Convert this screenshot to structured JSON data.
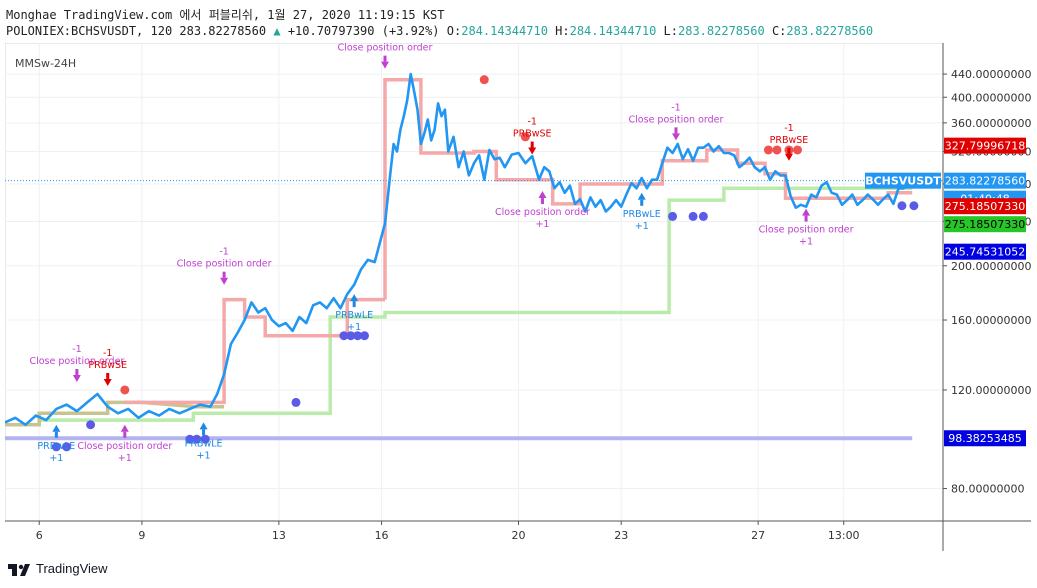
{
  "header": {
    "line1": "Monghae TradingView.com 에서 퍼블리쉬, 1월 27, 2020 11:19:15 KST",
    "symbol": "POLONIEX:BCHSVUSDT, 120",
    "price": "283.82278560",
    "change": "+10.70797390 (+3.92%)",
    "o_label": "O:",
    "o_value": "284.14344710",
    "h_label": "H:",
    "h_value": "284.14344710",
    "l_label": "L:",
    "l_value": "283.82278560",
    "c_label": "C:",
    "c_value": "283.82278560"
  },
  "indicator_label": "MMSw-24H",
  "footer": {
    "brand": "TradingView"
  },
  "colors": {
    "price_line": "#2196f3",
    "red_stop": "#f4a9a8",
    "green_stop": "#b9ecaa",
    "olive_stop": "#c9c38f",
    "lavender": "#b3b3f0",
    "dots_blue": "#5b5be8",
    "dots_red": "#ef5350",
    "magenta": "#c040d0",
    "red_signal": "#e00000",
    "blue_signal": "#1e88e5"
  },
  "chart_data": {
    "type": "line",
    "y_scale": "log",
    "ylim": [
      70,
      500
    ],
    "y_ticks": [
      "440.00000000",
      "400.00000000",
      "360.00000000",
      "320.00000000",
      "280.00000000",
      "240.00000000",
      "200.00000000",
      "160.00000000",
      "120.00000000",
      "80.00000000"
    ],
    "x_ticks": [
      "6",
      "9",
      "13",
      "16",
      "20",
      "23",
      "27",
      "13:00"
    ],
    "price_labels": [
      {
        "text": "327.79996718",
        "value": 327.79996718,
        "color": "#e00000",
        "text_color": "#ffffff"
      },
      {
        "text": "BCHSVUSDT",
        "value": 283.8227856,
        "color": "#2196f3",
        "text_color": "#ffffff",
        "side": "left"
      },
      {
        "text": "283.82278560",
        "value": 283.8227856,
        "color": "#2196f3",
        "text_color": "#ffffff"
      },
      {
        "text": "01:40:48",
        "value": null,
        "color": "#2196f3",
        "text_color": "#ffffff"
      },
      {
        "text": "275.18507330",
        "value": 275.1850733,
        "color": "#e00000",
        "text_color": "#ffffff"
      },
      {
        "text": "275.18507330",
        "value": 275.1850733,
        "color": "#26c626",
        "text_color": "#000000"
      },
      {
        "text": "245.74531052",
        "value": 245.74531052,
        "color": "#0000e0",
        "text_color": "#ffffff"
      },
      {
        "text": "98.38253485",
        "value": 98.38253485,
        "color": "#0000e0",
        "text_color": "#ffffff"
      }
    ],
    "series": [
      {
        "name": "",
        "values": [
          [
            5.0,
            105
          ],
          [
            5.3,
            107
          ],
          [
            5.6,
            104
          ],
          [
            5.9,
            108
          ],
          [
            6.2,
            106
          ],
          [
            6.5,
            111
          ],
          [
            6.8,
            113
          ],
          [
            7.1,
            110
          ],
          [
            7.4,
            114
          ],
          [
            7.7,
            118
          ],
          [
            8.0,
            112
          ],
          [
            8.3,
            109
          ],
          [
            8.6,
            111
          ],
          [
            8.9,
            107
          ],
          [
            9.2,
            110
          ],
          [
            9.5,
            108
          ],
          [
            9.8,
            111
          ],
          [
            10.1,
            109
          ],
          [
            10.4,
            111
          ],
          [
            10.7,
            113
          ],
          [
            11.0,
            112
          ],
          [
            11.2,
            118
          ],
          [
            11.4,
            128
          ],
          [
            11.6,
            145
          ],
          [
            11.8,
            152
          ],
          [
            12.0,
            160
          ],
          [
            12.2,
            172
          ],
          [
            12.4,
            165
          ],
          [
            12.6,
            168
          ],
          [
            12.8,
            160
          ],
          [
            13.0,
            156
          ],
          [
            13.2,
            158
          ],
          [
            13.4,
            153
          ],
          [
            13.6,
            162
          ],
          [
            13.8,
            158
          ],
          [
            14.0,
            170
          ],
          [
            14.2,
            172
          ],
          [
            14.4,
            168
          ],
          [
            14.6,
            175
          ],
          [
            14.8,
            168
          ],
          [
            15.0,
            178
          ],
          [
            15.2,
            185
          ],
          [
            15.4,
            197
          ],
          [
            15.6,
            205
          ],
          [
            15.8,
            203
          ],
          [
            15.95,
            220
          ],
          [
            16.1,
            238
          ],
          [
            16.25,
            290
          ],
          [
            16.35,
            330
          ],
          [
            16.45,
            320
          ],
          [
            16.55,
            350
          ],
          [
            16.65,
            370
          ],
          [
            16.75,
            395
          ],
          [
            16.85,
            440
          ],
          [
            16.95,
            410
          ],
          [
            17.05,
            380
          ],
          [
            17.15,
            330
          ],
          [
            17.25,
            345
          ],
          [
            17.35,
            365
          ],
          [
            17.45,
            335
          ],
          [
            17.55,
            350
          ],
          [
            17.65,
            390
          ],
          [
            17.75,
            370
          ],
          [
            17.85,
            380
          ],
          [
            17.95,
            320
          ],
          [
            18.1,
            340
          ],
          [
            18.25,
            300
          ],
          [
            18.4,
            320
          ],
          [
            18.55,
            290
          ],
          [
            18.7,
            305
          ],
          [
            18.85,
            315
          ],
          [
            19.0,
            285
          ],
          [
            19.15,
            322
          ],
          [
            19.3,
            310
          ],
          [
            19.45,
            312
          ],
          [
            19.6,
            300
          ],
          [
            19.8,
            316
          ],
          [
            20.0,
            318
          ],
          [
            20.2,
            305
          ],
          [
            20.4,
            314
          ],
          [
            20.6,
            285
          ],
          [
            20.75,
            300
          ],
          [
            20.9,
            295
          ],
          [
            21.05,
            275
          ],
          [
            21.2,
            282
          ],
          [
            21.35,
            270
          ],
          [
            21.5,
            278
          ],
          [
            21.65,
            258
          ],
          [
            21.8,
            263
          ],
          [
            21.95,
            250
          ],
          [
            22.1,
            265
          ],
          [
            22.25,
            255
          ],
          [
            22.4,
            262
          ],
          [
            22.55,
            250
          ],
          [
            22.7,
            255
          ],
          [
            22.85,
            262
          ],
          [
            23.0,
            255
          ],
          [
            23.15,
            268
          ],
          [
            23.3,
            281
          ],
          [
            23.45,
            275
          ],
          [
            23.6,
            287
          ],
          [
            23.75,
            275
          ],
          [
            23.9,
            285
          ],
          [
            24.05,
            285
          ],
          [
            24.2,
            305
          ],
          [
            24.35,
            325
          ],
          [
            24.5,
            318
          ],
          [
            24.65,
            330
          ],
          [
            24.8,
            310
          ],
          [
            24.95,
            323
          ],
          [
            25.1,
            308
          ],
          [
            25.25,
            325
          ],
          [
            25.4,
            325
          ],
          [
            25.55,
            330
          ],
          [
            25.7,
            320
          ],
          [
            25.85,
            327
          ],
          [
            26.0,
            318
          ],
          [
            26.15,
            318
          ],
          [
            26.3,
            315
          ],
          [
            26.45,
            300
          ],
          [
            26.6,
            305
          ],
          [
            26.75,
            312
          ],
          [
            26.9,
            300
          ],
          [
            27.05,
            295
          ],
          [
            27.2,
            300
          ],
          [
            27.35,
            285
          ],
          [
            27.5,
            295
          ],
          [
            27.65,
            290
          ],
          [
            27.8,
            290
          ],
          [
            27.95,
            266
          ],
          [
            28.1,
            254
          ],
          [
            28.25,
            257
          ],
          [
            28.4,
            255
          ],
          [
            28.55,
            268
          ],
          [
            28.7,
            265
          ],
          [
            28.85,
            278
          ],
          [
            29.0,
            282
          ],
          [
            29.15,
            270
          ],
          [
            29.3,
            268
          ],
          [
            29.45,
            257
          ],
          [
            29.6,
            262
          ],
          [
            29.75,
            268
          ],
          [
            29.9,
            257
          ],
          [
            30.05,
            262
          ],
          [
            30.2,
            268
          ],
          [
            30.35,
            263
          ],
          [
            30.5,
            257
          ],
          [
            30.65,
            263
          ],
          [
            30.8,
            268
          ],
          [
            30.95,
            258
          ],
          [
            31.1,
            275
          ],
          [
            31.25,
            275
          ],
          [
            31.4,
            283
          ]
        ]
      }
    ],
    "x_ticks_pos": [
      6,
      9,
      13,
      16,
      20,
      23,
      27,
      29.5
    ],
    "x_range": [
      5.0,
      32.4
    ],
    "stops_red": [
      [
        16.1,
        174
      ],
      [
        16.1,
        430
      ],
      [
        17.15,
        430
      ],
      [
        17.15,
        318
      ],
      [
        18.7,
        318
      ],
      [
        18.7,
        320
      ],
      [
        19.35,
        320
      ],
      [
        19.35,
        285
      ],
      [
        21.0,
        285
      ],
      [
        21.0,
        258
      ],
      [
        21.8,
        258
      ],
      [
        21.8,
        280
      ],
      [
        24.2,
        280
      ],
      [
        24.2,
        308
      ],
      [
        25.5,
        308
      ],
      [
        25.5,
        322
      ],
      [
        26.4,
        322
      ],
      [
        26.4,
        305
      ],
      [
        27.2,
        305
      ],
      [
        27.2,
        292
      ],
      [
        27.8,
        292
      ],
      [
        27.8,
        264
      ],
      [
        30.8,
        264
      ],
      [
        30.8,
        270
      ],
      [
        31.5,
        270
      ]
    ],
    "stops_red_early": [
      [
        8.5,
        114
      ],
      [
        11.4,
        114
      ],
      [
        11.4,
        174
      ],
      [
        12.0,
        174
      ],
      [
        12.0,
        162
      ],
      [
        12.6,
        162
      ],
      [
        12.6,
        150
      ],
      [
        15.0,
        150
      ],
      [
        15.0,
        174
      ],
      [
        16.1,
        174
      ]
    ],
    "stops_green": [
      [
        6.0,
        104
      ],
      [
        6.0,
        106
      ],
      [
        10.5,
        106
      ],
      [
        10.5,
        109
      ],
      [
        14.5,
        109
      ],
      [
        14.5,
        162
      ],
      [
        16.1,
        162
      ],
      [
        16.1,
        165
      ],
      [
        24.4,
        165
      ],
      [
        24.4,
        262
      ],
      [
        26.0,
        262
      ],
      [
        26.0,
        275
      ],
      [
        31.5,
        275
      ]
    ],
    "stops_olive": [
      [
        5.0,
        104
      ],
      [
        6.0,
        104
      ],
      [
        6.0,
        109
      ],
      [
        8.0,
        109
      ],
      [
        8.0,
        114
      ],
      [
        9.0,
        114
      ],
      [
        10.6,
        112
      ],
      [
        11.4,
        112
      ]
    ],
    "lavender_value": 98.38253485,
    "dots_blue": [
      [
        6.5,
        95
      ],
      [
        6.8,
        95
      ],
      [
        7.5,
        104
      ],
      [
        10.4,
        98
      ],
      [
        10.6,
        98
      ],
      [
        10.85,
        98
      ],
      [
        13.5,
        114
      ],
      [
        14.9,
        150
      ],
      [
        15.1,
        150
      ],
      [
        15.3,
        150
      ],
      [
        15.5,
        150
      ],
      [
        24.5,
        245
      ],
      [
        25.1,
        245
      ],
      [
        25.4,
        245
      ],
      [
        31.2,
        256
      ],
      [
        31.55,
        256
      ]
    ],
    "dots_red": [
      [
        8.5,
        120
      ],
      [
        19.0,
        430
      ],
      [
        20.2,
        340
      ],
      [
        27.3,
        322
      ],
      [
        27.55,
        322
      ],
      [
        27.9,
        322
      ],
      [
        28.15,
        322
      ]
    ],
    "annotations": [
      {
        "x": 16.1,
        "y": 450,
        "lines": [
          "-1",
          "Close position order"
        ],
        "color": "#c040d0",
        "arrow": "down"
      },
      {
        "x": 11.4,
        "y": 185,
        "lines": [
          "-1",
          "Close position order"
        ],
        "color": "#c040d0",
        "arrow": "down"
      },
      {
        "x": 7.1,
        "y": 124,
        "lines": [
          "-1",
          "Close position order"
        ],
        "color": "#c040d0",
        "arrow": "down"
      },
      {
        "x": 8.0,
        "y": 122,
        "lines": [
          "-1",
          "PRBwSE"
        ],
        "color": "#e00000",
        "arrow": "down"
      },
      {
        "x": 20.4,
        "y": 316,
        "lines": [
          "-1",
          "PRBwSE"
        ],
        "color": "#e00000",
        "arrow": "down"
      },
      {
        "x": 24.6,
        "y": 335,
        "lines": [
          "-1",
          "Close position order"
        ],
        "color": "#c040d0",
        "arrow": "down"
      },
      {
        "x": 27.9,
        "y": 308,
        "lines": [
          "-1",
          "PRBwSE"
        ],
        "color": "#e00000",
        "arrow": "down"
      },
      {
        "x": 8.5,
        "y": 104,
        "lines": [
          "Close position order",
          "+1"
        ],
        "color": "#c040d0",
        "arrow": "up"
      },
      {
        "x": 20.7,
        "y": 272,
        "lines": [
          "Close position order",
          "+1"
        ],
        "color": "#c040d0",
        "arrow": "up"
      },
      {
        "x": 28.4,
        "y": 253,
        "lines": [
          "Close position order",
          "+1"
        ],
        "color": "#c040d0",
        "arrow": "up"
      },
      {
        "x": 6.5,
        "y": 104,
        "lines": [
          "PRBwLE",
          "+1"
        ],
        "color": "#1e88e5",
        "arrow": "up"
      },
      {
        "x": 10.8,
        "y": 105,
        "lines": [
          "PRBwLE",
          "+1"
        ],
        "color": "#1e88e5",
        "arrow": "up"
      },
      {
        "x": 15.2,
        "y": 178,
        "lines": [
          "PRBwLE",
          "+1"
        ],
        "color": "#1e88e5",
        "arrow": "up"
      },
      {
        "x": 23.6,
        "y": 270,
        "lines": [
          "PRBwLE",
          "+1"
        ],
        "color": "#1e88e5",
        "arrow": "up"
      }
    ]
  }
}
